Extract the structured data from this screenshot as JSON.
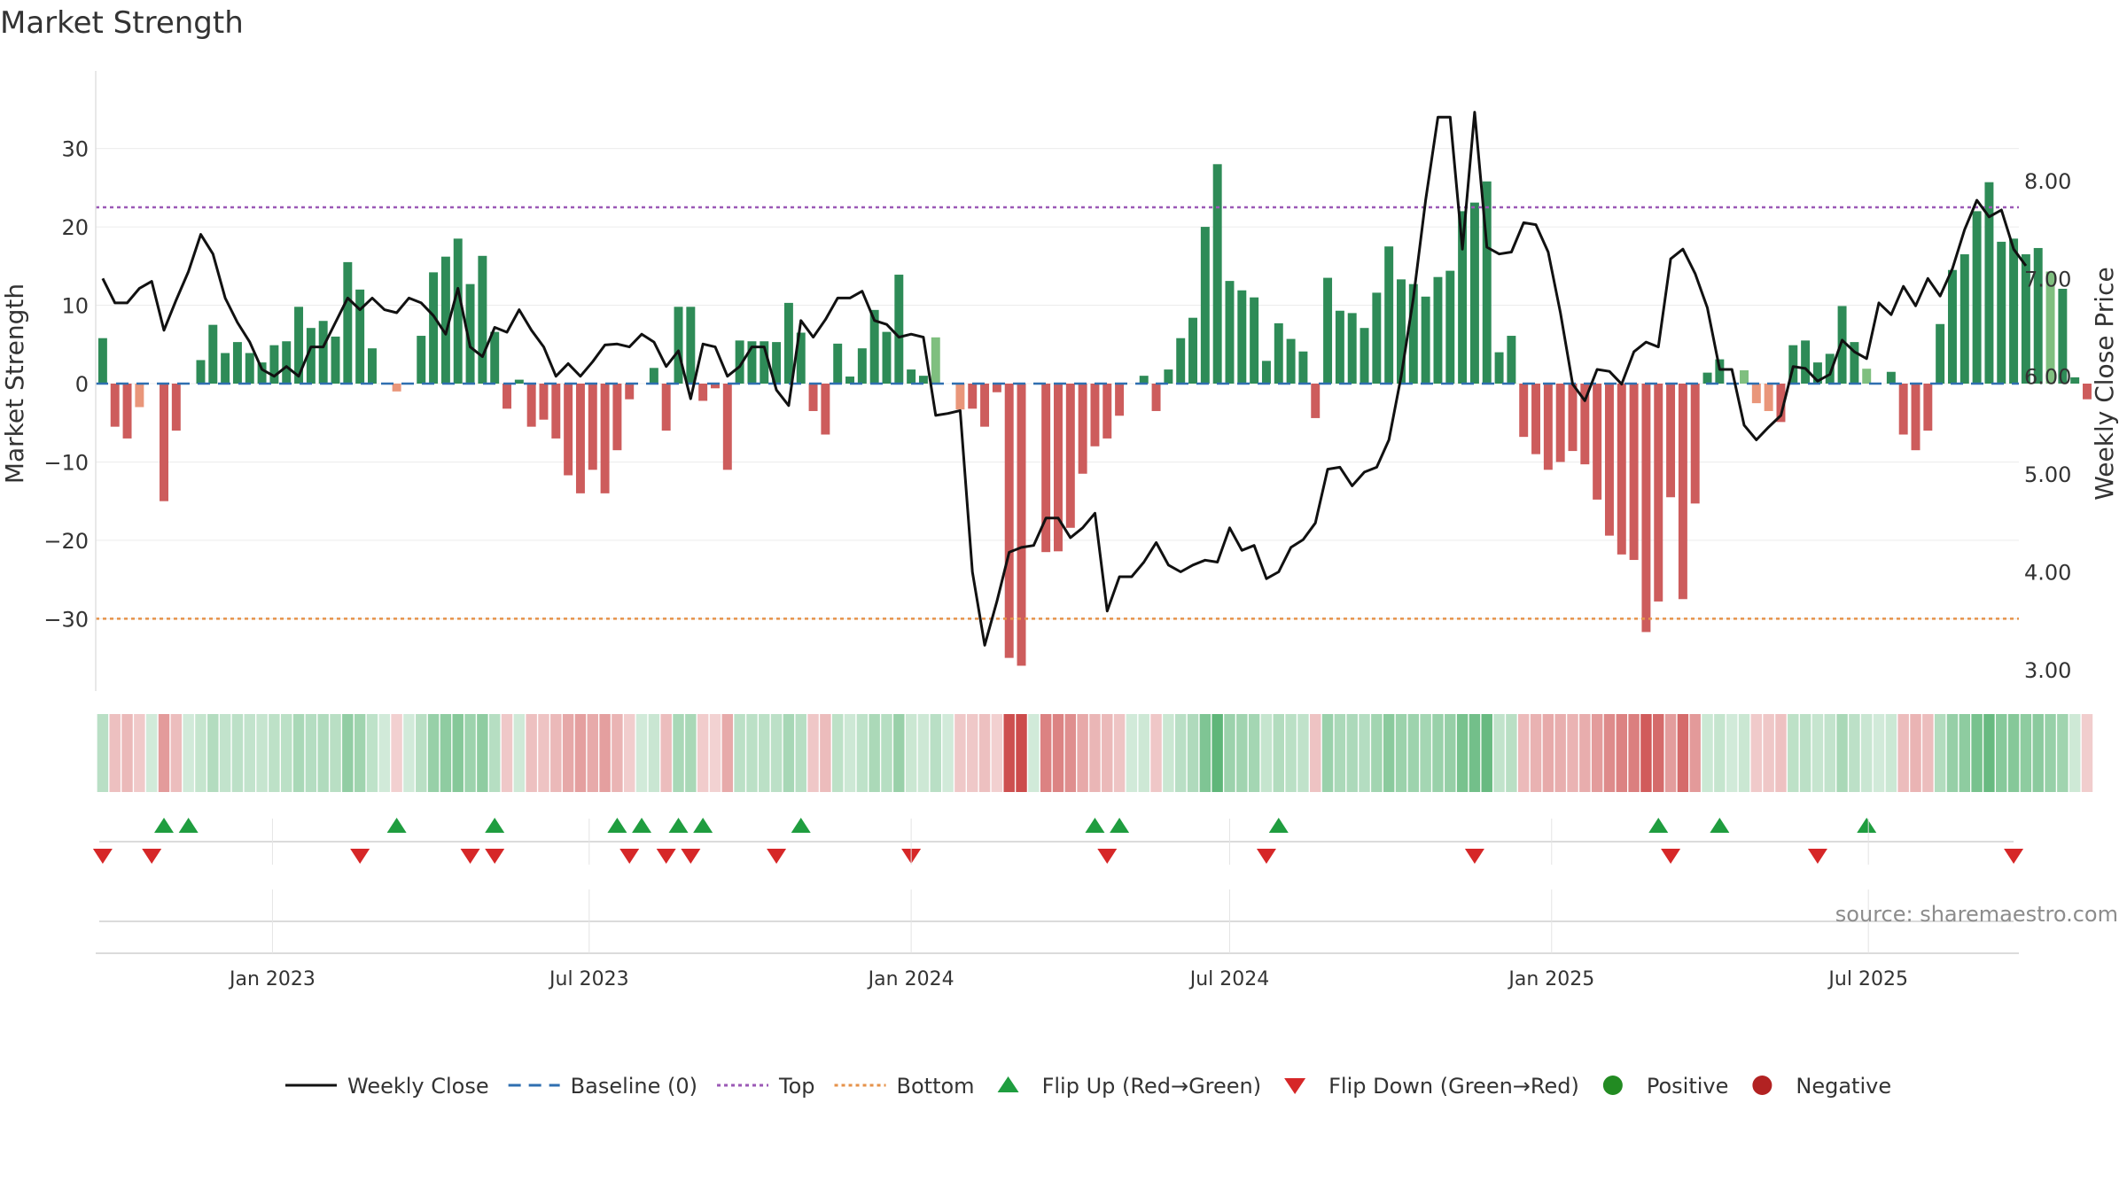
{
  "title": "Market Strength",
  "source": "source: sharemaestro.com",
  "colors": {
    "close": "#111111",
    "baseline": "#2f6fb0",
    "top": "#9b59b6",
    "bottom": "#e6924a",
    "pos_strong": "#2e8b57",
    "pos_weak": "#7fbf7f",
    "neg_strong": "#cd5c5c",
    "neg_weak": "#e9967a",
    "flip_up": "#1f9d3f",
    "flip_down": "#d62728",
    "positive_dot": "#228b22",
    "negative_dot": "#b22222"
  },
  "legend": [
    {
      "label": "Weekly Close",
      "kind": "line"
    },
    {
      "label": "Baseline (0)",
      "kind": "dash"
    },
    {
      "label": "Top",
      "kind": "dot-purple"
    },
    {
      "label": "Bottom",
      "kind": "dot-orange"
    },
    {
      "label": "Flip Up (Red→Green)",
      "kind": "tri-up"
    },
    {
      "label": "Flip Down (Green→Red)",
      "kind": "tri-down"
    },
    {
      "label": "Positive",
      "kind": "dot-green"
    },
    {
      "label": "Negative",
      "kind": "dot-red"
    }
  ],
  "chart_data": {
    "type": "bar",
    "x_start": "2022-09-26",
    "x_ticks": [
      "Jan 2023",
      "Jul 2023",
      "Jan 2024",
      "Jul 2024",
      "Jan 2025",
      "Jul 2025"
    ],
    "xlim": [
      "2022-09-22",
      "2025-09-25"
    ],
    "y_left": {
      "label": "Market Strength",
      "ticks": [
        30,
        20,
        10,
        0,
        -10,
        -20,
        -30
      ],
      "tick_labels": [
        "30",
        "20",
        "10",
        "0",
        "−10",
        "−20",
        "−30"
      ],
      "lim": [
        -39,
        39
      ]
    },
    "y_right": {
      "label": "Weekly Close Price",
      "ticks": [
        8.0,
        7.0,
        6.0,
        5.0,
        4.0,
        3.0
      ],
      "tick_labels": [
        "8.00",
        "7.00",
        "6.00",
        "5.00",
        "4.00",
        "3.00"
      ],
      "lim": [
        2.8,
        9.05
      ]
    },
    "top_level": 22.5,
    "bottom_level": -30,
    "strength": [
      5.8,
      -5.5,
      -7,
      -3,
      0,
      -15,
      -6,
      0,
      3,
      7.5,
      3.9,
      5.3,
      3.9,
      2.7,
      4.9,
      5.4,
      9.8,
      7.1,
      8,
      6,
      15.5,
      12,
      4.5,
      0,
      -1,
      0,
      6.1,
      14.2,
      16.2,
      18.5,
      12.7,
      16.3,
      6.6,
      -3.2,
      0.5,
      -5.5,
      -4.6,
      -7,
      -11.7,
      -14,
      -11,
      -14,
      -8.5,
      -2,
      0,
      2,
      -6,
      9.8,
      9.8,
      -2.2,
      -0.6,
      -11,
      5.5,
      5.4,
      5.4,
      5.3,
      10.3,
      6.5,
      -3.5,
      -6.5,
      5.1,
      0.9,
      4.5,
      9.4,
      6.6,
      13.9,
      1.8,
      1,
      5.9,
      0,
      -3.3,
      -3.2,
      -5.5,
      -1.1,
      -35,
      -36,
      0,
      -21.5,
      -21.4,
      -18.4,
      -11.5,
      -8,
      -7,
      -4.1,
      0,
      1,
      -3.5,
      1.8,
      5.8,
      8.4,
      20,
      28,
      13.1,
      11.9,
      11,
      2.9,
      7.7,
      5.7,
      4.1,
      -4.4,
      13.5,
      9.3,
      9,
      7.1,
      11.6,
      17.5,
      13.3,
      12.7,
      11.1,
      13.6,
      14.4,
      22,
      23.1,
      25.8,
      4,
      6.1,
      -6.8,
      -9,
      -11,
      -10,
      -8.6,
      -10.3,
      -14.8,
      -19.4,
      -21.8,
      -22.5,
      -31.7,
      -27.8,
      -14.5,
      -27.5,
      -15.3,
      1.4,
      3.1,
      0,
      1.7,
      -2.5,
      -3.5,
      -4.9,
      4.9,
      5.5,
      2.7,
      3.8,
      9.9,
      5.3,
      1.9,
      0,
      1.5,
      -6.5,
      -8.5,
      -6,
      7.6,
      14.5,
      16.5,
      22,
      25.7,
      18.1,
      18.5,
      16.5,
      17.3,
      14.3,
      12.1,
      0.8,
      -2
    ],
    "weekly_close": [
      7.0,
      6.75,
      6.75,
      6.9,
      6.97,
      6.47,
      6.78,
      7.07,
      7.45,
      7.25,
      6.8,
      6.55,
      6.35,
      6.07,
      6.0,
      6.1,
      6.0,
      6.3,
      6.3,
      6.55,
      6.8,
      6.68,
      6.8,
      6.68,
      6.65,
      6.8,
      6.75,
      6.62,
      6.43,
      6.9,
      6.3,
      6.2,
      6.5,
      6.45,
      6.68,
      6.47,
      6.3,
      6.0,
      6.13,
      6.0,
      6.15,
      6.32,
      6.33,
      6.3,
      6.43,
      6.35,
      6.1,
      6.26,
      5.77,
      6.33,
      6.3,
      6.0,
      6.1,
      6.3,
      6.3,
      5.86,
      5.7,
      6.57,
      6.4,
      6.58,
      6.8,
      6.8,
      6.87,
      6.57,
      6.53,
      6.4,
      6.43,
      6.4,
      5.6,
      5.62,
      5.65,
      4.0,
      3.25,
      3.7,
      4.2,
      4.25,
      4.27,
      4.55,
      4.55,
      4.35,
      4.45,
      4.6,
      3.6,
      3.95,
      3.95,
      4.1,
      4.3,
      4.07,
      4.0,
      4.07,
      4.12,
      4.1,
      4.45,
      4.22,
      4.27,
      3.93,
      4.0,
      4.25,
      4.33,
      4.5,
      5.05,
      5.07,
      4.88,
      5.02,
      5.07,
      5.35,
      6.0,
      6.8,
      7.8,
      8.65,
      8.65,
      7.3,
      8.7,
      7.32,
      7.25,
      7.27,
      7.57,
      7.55,
      7.27,
      6.65,
      5.92,
      5.75,
      6.07,
      6.05,
      5.92,
      6.25,
      6.35,
      6.3,
      7.2,
      7.3,
      7.05,
      6.7,
      6.07,
      6.07,
      5.5,
      5.35,
      5.48,
      5.6,
      6.1,
      6.08,
      5.95,
      6.02,
      6.37,
      6.25,
      6.18,
      6.75,
      6.63,
      6.92,
      6.72,
      7.0,
      6.82,
      7.1,
      7.5,
      7.8,
      7.63,
      7.7,
      7.3,
      7.13
    ],
    "strength_bar": [
      2,
      1,
      1,
      0,
      1,
      1,
      1,
      0,
      1,
      1,
      1,
      1,
      1,
      1,
      1,
      1,
      1,
      1,
      1,
      1,
      1,
      1,
      1,
      0,
      0,
      0,
      1,
      1,
      1,
      1,
      1,
      1,
      1,
      1,
      1,
      1,
      1,
      1,
      1,
      1,
      1,
      1,
      1,
      1,
      1,
      1,
      1,
      1,
      1,
      1,
      1,
      1,
      1,
      1,
      1,
      1,
      1,
      1,
      1,
      1,
      1,
      1,
      1,
      1,
      1,
      1,
      1,
      1,
      0,
      0,
      0,
      1,
      1,
      1,
      2,
      2,
      0,
      1,
      1,
      1,
      1,
      1,
      1,
      1,
      1,
      1,
      1,
      1,
      1,
      1,
      2,
      2,
      1,
      1,
      1,
      1,
      1,
      1,
      1,
      1,
      1,
      1,
      1,
      1,
      1,
      1,
      1,
      1,
      1,
      1,
      1,
      2,
      2,
      2,
      1,
      1,
      1,
      1,
      1,
      1,
      1,
      1,
      1,
      1,
      1,
      1,
      2,
      2,
      1,
      1,
      1,
      1,
      1,
      0,
      0,
      0,
      0,
      1,
      1,
      1,
      1,
      1,
      1,
      1,
      0,
      1,
      1,
      1,
      1,
      2,
      2,
      2,
      2,
      2,
      2,
      2,
      2,
      1,
      1,
      0
    ],
    "flip_up": [
      5,
      7,
      24,
      32,
      42,
      44,
      47,
      49,
      57,
      81,
      83,
      96,
      127,
      132,
      144
    ],
    "flip_down": [
      0,
      4,
      21,
      30,
      32,
      43,
      46,
      48,
      55,
      66,
      82,
      95,
      112,
      128,
      140,
      156
    ]
  }
}
